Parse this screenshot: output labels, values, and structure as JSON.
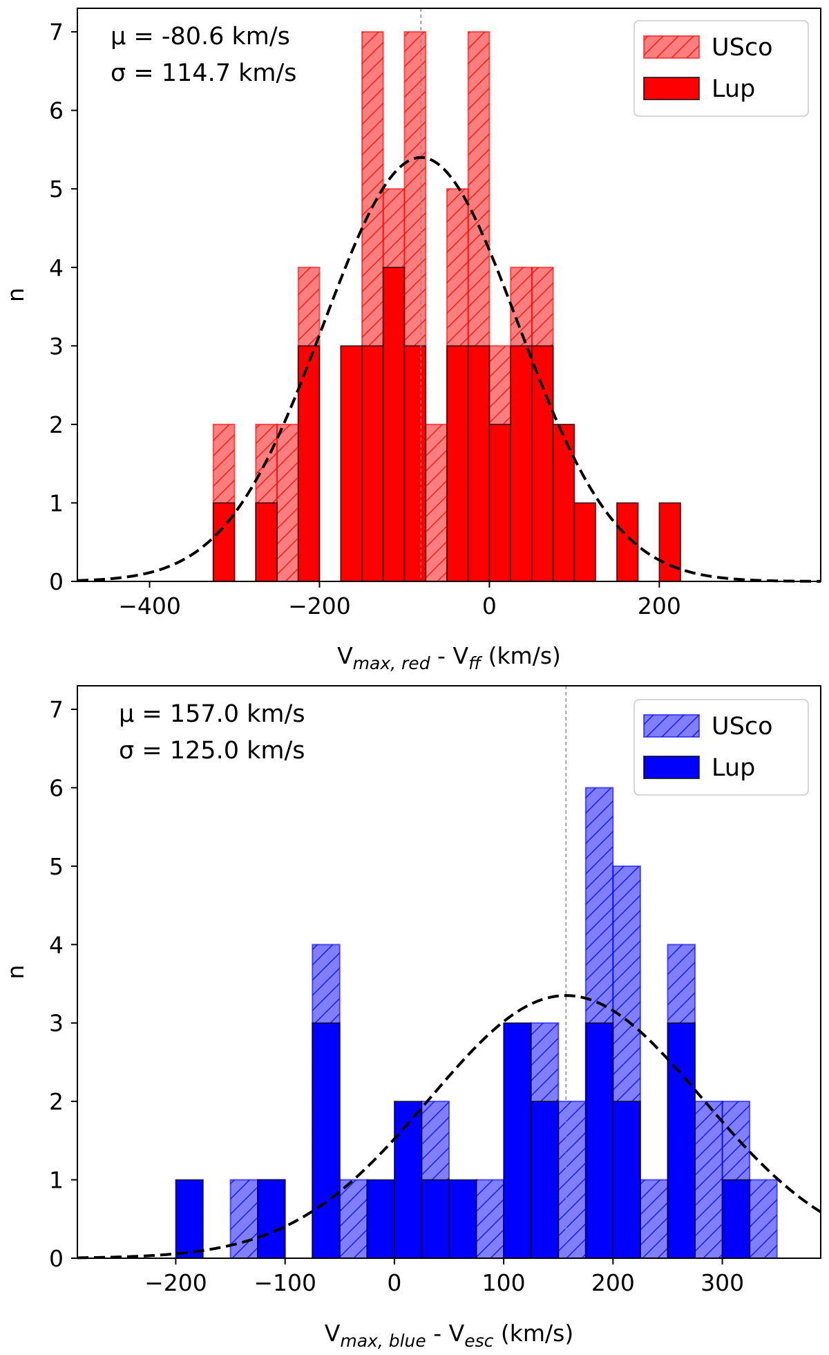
{
  "chart_data": [
    {
      "type": "bar",
      "subtype": "histogram",
      "panel": "top",
      "color": "#ff0000",
      "bin_width": 25,
      "xlim": [
        -485,
        390
      ],
      "ylim": [
        0,
        7.3
      ],
      "xticks": [
        -400,
        -200,
        0,
        200
      ],
      "xtick_labels": [
        "−400",
        "−200",
        "0",
        "200"
      ],
      "yticks": [
        0,
        1,
        2,
        3,
        4,
        5,
        6,
        7
      ],
      "ytick_labels": [
        "0",
        "1",
        "2",
        "3",
        "4",
        "5",
        "6",
        "7"
      ],
      "xlabel": {
        "main": "V",
        "sub1": "max, red",
        "mid": " - V",
        "sub2": "ff",
        "tail": " (km/s)"
      },
      "ylabel": "n",
      "annotation_mu": "μ = -80.6 km/s",
      "annotation_sigma": "σ = 114.7 km/s",
      "mu": -80.6,
      "sigma": 114.7,
      "gauss_peak": 5.4,
      "series": [
        {
          "name": "USco",
          "style": "hatched",
          "bins": [
            {
              "x0": -325,
              "n": 2
            },
            {
              "x0": -275,
              "n": 2
            },
            {
              "x0": -250,
              "n": 2
            },
            {
              "x0": -225,
              "n": 4
            },
            {
              "x0": -150,
              "n": 7
            },
            {
              "x0": -125,
              "n": 5
            },
            {
              "x0": -100,
              "n": 7
            },
            {
              "x0": -75,
              "n": 2
            },
            {
              "x0": -50,
              "n": 5
            },
            {
              "x0": -25,
              "n": 7
            },
            {
              "x0": 0,
              "n": 3
            },
            {
              "x0": 25,
              "n": 4
            },
            {
              "x0": 50,
              "n": 4
            }
          ]
        },
        {
          "name": "Lup",
          "style": "solid",
          "bins": [
            {
              "x0": -325,
              "n": 1
            },
            {
              "x0": -275,
              "n": 1
            },
            {
              "x0": -225,
              "n": 3
            },
            {
              "x0": -175,
              "n": 3
            },
            {
              "x0": -150,
              "n": 3
            },
            {
              "x0": -125,
              "n": 4
            },
            {
              "x0": -100,
              "n": 3
            },
            {
              "x0": -50,
              "n": 3
            },
            {
              "x0": -25,
              "n": 3
            },
            {
              "x0": 0,
              "n": 2
            },
            {
              "x0": 25,
              "n": 3
            },
            {
              "x0": 50,
              "n": 3
            },
            {
              "x0": 75,
              "n": 2
            },
            {
              "x0": 100,
              "n": 1
            },
            {
              "x0": 150,
              "n": 1
            },
            {
              "x0": 200,
              "n": 1
            }
          ]
        }
      ]
    },
    {
      "type": "bar",
      "subtype": "histogram",
      "panel": "bottom",
      "color": "#0000ff",
      "bin_width": 25,
      "xlim": [
        -290,
        390
      ],
      "ylim": [
        0,
        7.3
      ],
      "xticks": [
        -200,
        -100,
        0,
        100,
        200,
        300
      ],
      "xtick_labels": [
        "−200",
        "−100",
        "0",
        "100",
        "200",
        "300"
      ],
      "yticks": [
        0,
        1,
        2,
        3,
        4,
        5,
        6,
        7
      ],
      "ytick_labels": [
        "0",
        "1",
        "2",
        "3",
        "4",
        "5",
        "6",
        "7"
      ],
      "xlabel": {
        "main": "V",
        "sub1": "max, blue",
        "mid": " - V",
        "sub2": "esc",
        "tail": " (km/s)"
      },
      "ylabel": "n",
      "annotation_mu": "μ = 157.0 km/s",
      "annotation_sigma": "σ = 125.0 km/s",
      "mu": 157.0,
      "sigma": 125.0,
      "gauss_peak": 3.35,
      "series": [
        {
          "name": "USco",
          "style": "hatched",
          "bins": [
            {
              "x0": -150,
              "n": 1
            },
            {
              "x0": -125,
              "n": 1
            },
            {
              "x0": -75,
              "n": 4
            },
            {
              "x0": -50,
              "n": 1
            },
            {
              "x0": 25,
              "n": 2
            },
            {
              "x0": 75,
              "n": 1
            },
            {
              "x0": 100,
              "n": 1
            },
            {
              "x0": 125,
              "n": 3
            },
            {
              "x0": 150,
              "n": 2
            },
            {
              "x0": 175,
              "n": 6
            },
            {
              "x0": 200,
              "n": 5
            },
            {
              "x0": 225,
              "n": 1
            },
            {
              "x0": 250,
              "n": 4
            },
            {
              "x0": 275,
              "n": 2
            },
            {
              "x0": 300,
              "n": 2
            },
            {
              "x0": 325,
              "n": 1
            }
          ]
        },
        {
          "name": "Lup",
          "style": "solid",
          "bins": [
            {
              "x0": -200,
              "n": 1
            },
            {
              "x0": -125,
              "n": 1
            },
            {
              "x0": -75,
              "n": 3
            },
            {
              "x0": -25,
              "n": 1
            },
            {
              "x0": 0,
              "n": 2
            },
            {
              "x0": 25,
              "n": 1
            },
            {
              "x0": 50,
              "n": 1
            },
            {
              "x0": 100,
              "n": 3
            },
            {
              "x0": 125,
              "n": 2
            },
            {
              "x0": 175,
              "n": 3
            },
            {
              "x0": 200,
              "n": 2
            },
            {
              "x0": 250,
              "n": 3
            },
            {
              "x0": 300,
              "n": 1
            }
          ]
        }
      ]
    }
  ]
}
